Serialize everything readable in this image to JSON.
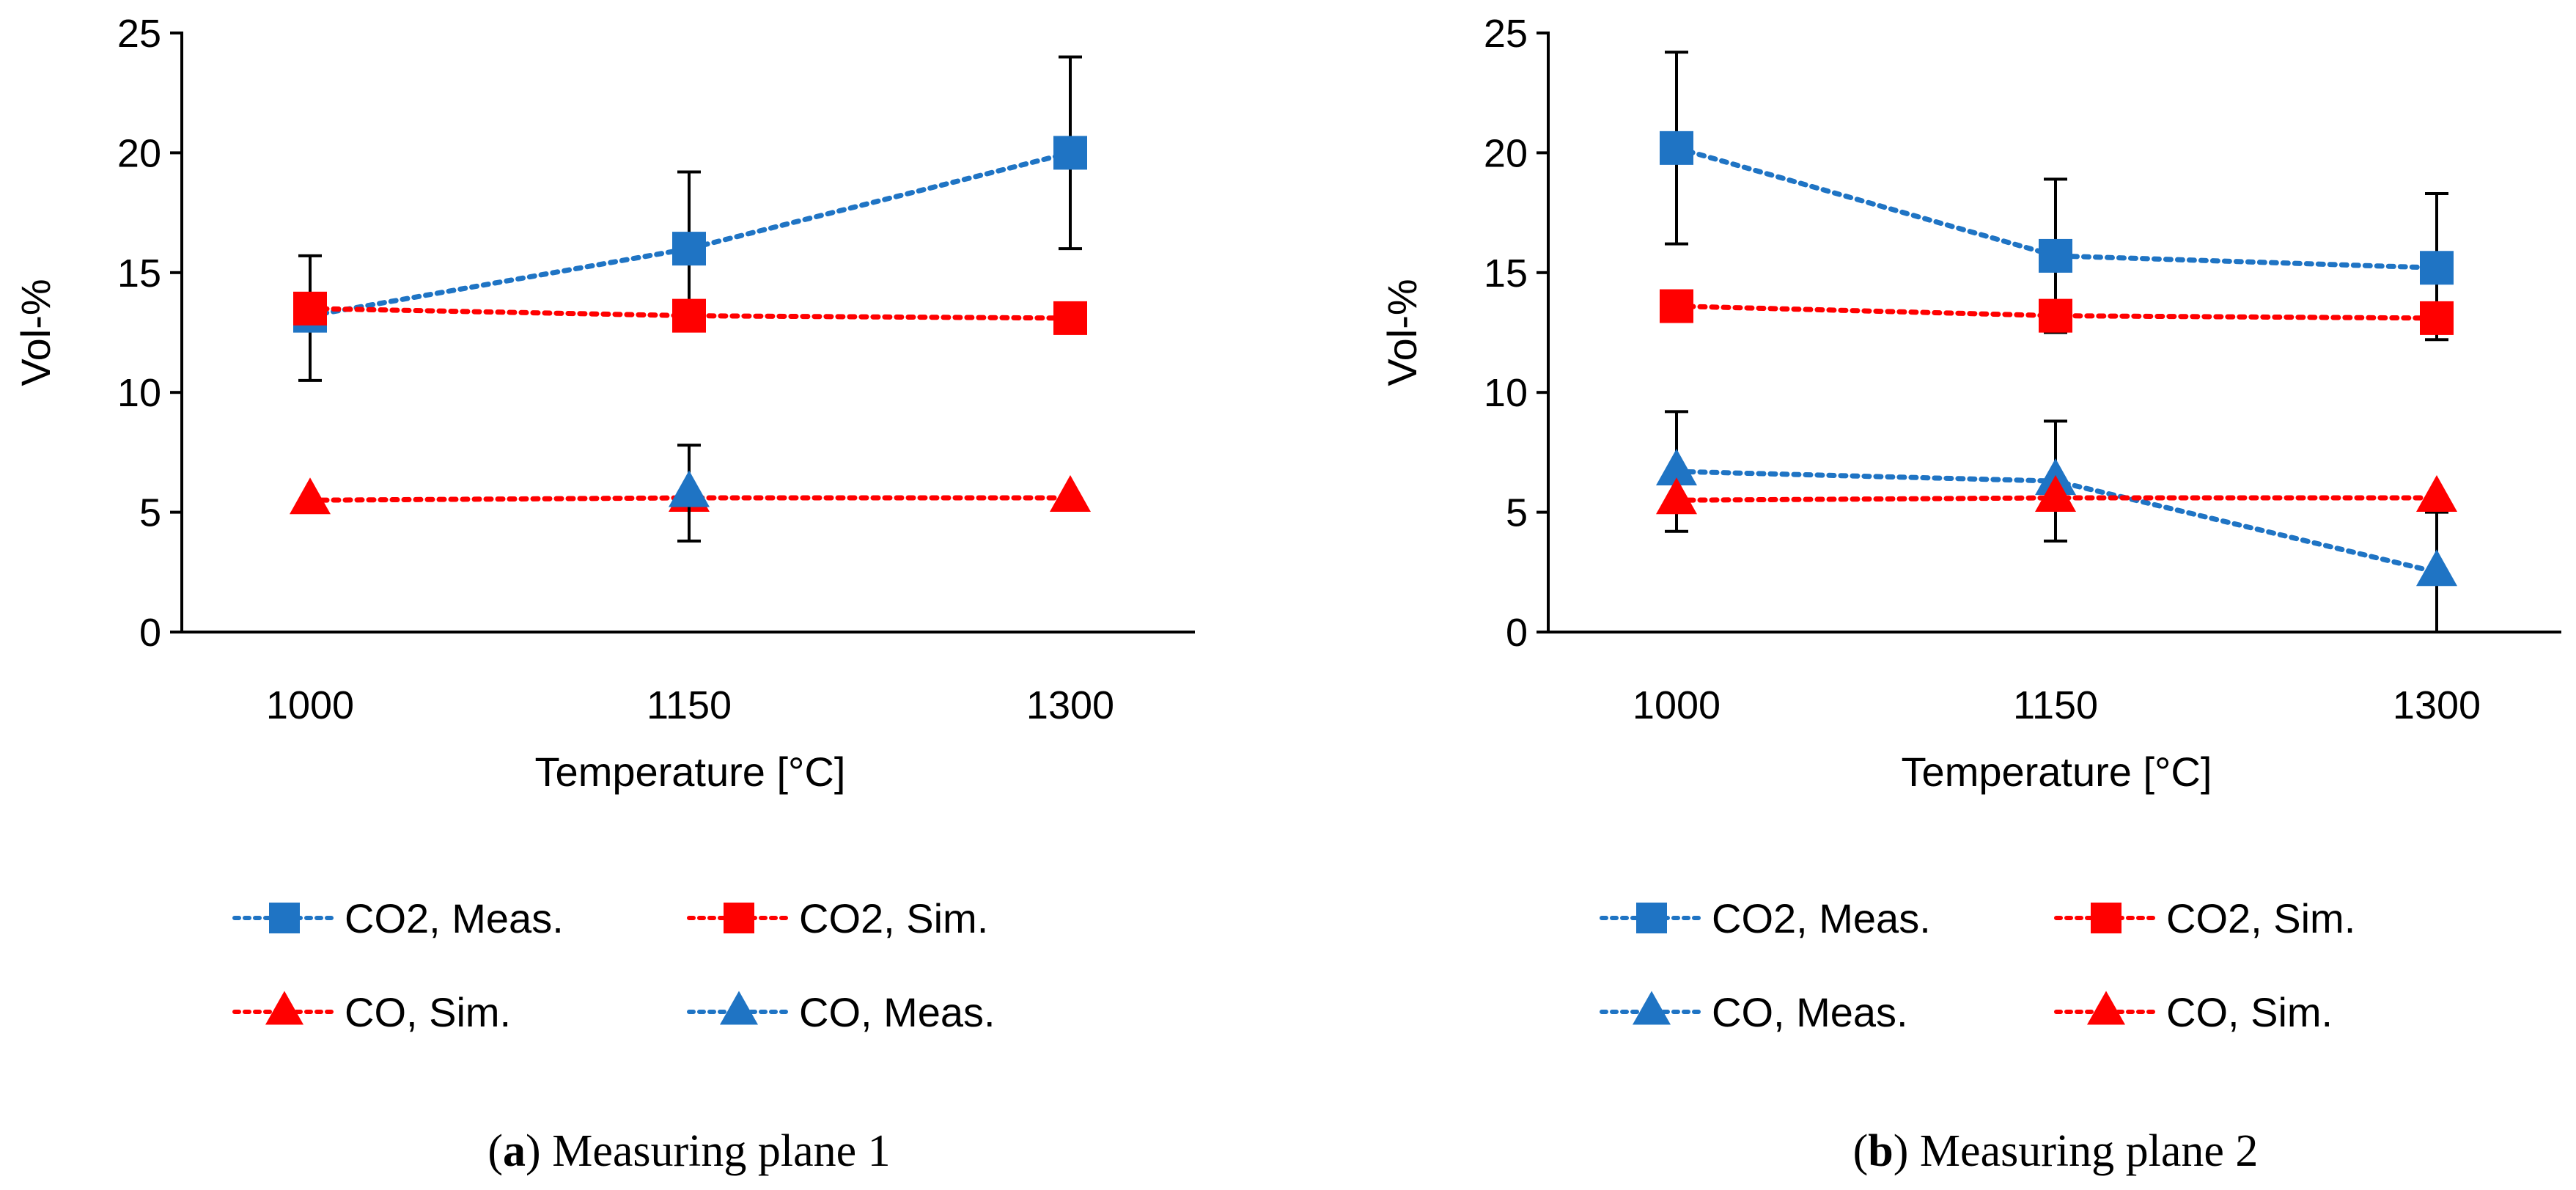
{
  "colors": {
    "meas": "#1f74c4",
    "sim": "#ff0000",
    "axis": "#000000"
  },
  "chart_data": [
    {
      "type": "line",
      "caption_letter": "a",
      "caption_text": "Measuring plane 1",
      "caption_open": "(",
      "caption_close": ")",
      "xlabel": "Temperature [°C]",
      "ylabel": "Vol-%",
      "ylim": [
        0,
        25
      ],
      "yticks": [
        "0",
        "5",
        "10",
        "15",
        "20",
        "25"
      ],
      "categories": [
        "1000",
        "1150",
        "1300"
      ],
      "series": [
        {
          "name": "CO2, Meas.",
          "marker": "square",
          "color_key": "meas",
          "values": [
            13.2,
            16.0,
            20.0
          ],
          "err_low": [
            2.7,
            2.5,
            4.0
          ],
          "err_high": [
            2.5,
            3.2,
            4.0
          ]
        },
        {
          "name": "CO2, Sim.",
          "marker": "square",
          "color_key": "sim",
          "values": [
            13.5,
            13.2,
            13.1
          ],
          "err_low": [
            0,
            0,
            0
          ],
          "err_high": [
            0,
            0,
            0
          ]
        },
        {
          "name": "CO, Sim.",
          "marker": "triangle",
          "color_key": "sim",
          "values": [
            5.5,
            5.6,
            5.6
          ],
          "err_low": [
            0,
            0,
            0
          ],
          "err_high": [
            0,
            0,
            0
          ]
        },
        {
          "name": "CO, Meas.",
          "marker": "triangle",
          "color_key": "meas",
          "values": [
            null,
            5.8,
            null
          ],
          "err_low": [
            0,
            2.0,
            0
          ],
          "err_high": [
            0,
            2.0,
            0
          ]
        }
      ]
    },
    {
      "type": "line",
      "caption_letter": "b",
      "caption_text": "Measuring plane 2",
      "caption_open": "(",
      "caption_close": ")",
      "xlabel": "Temperature [°C]",
      "ylabel": "Vol-%",
      "ylim": [
        0,
        25
      ],
      "yticks": [
        "0",
        "5",
        "10",
        "15",
        "20",
        "25"
      ],
      "categories": [
        "1000",
        "1150",
        "1300"
      ],
      "series": [
        {
          "name": "CO2, Meas.",
          "marker": "square",
          "color_key": "meas",
          "values": [
            20.2,
            15.7,
            15.2
          ],
          "err_low": [
            4.0,
            3.2,
            3.0
          ],
          "err_high": [
            4.0,
            3.2,
            3.1
          ]
        },
        {
          "name": "CO2, Sim.",
          "marker": "square",
          "color_key": "sim",
          "values": [
            13.6,
            13.2,
            13.1
          ],
          "err_low": [
            0,
            0,
            0
          ],
          "err_high": [
            0,
            0,
            0
          ]
        },
        {
          "name": "CO, Meas.",
          "marker": "triangle",
          "color_key": "meas",
          "values": [
            6.7,
            6.3,
            2.5
          ],
          "err_low": [
            2.5,
            2.5,
            2.5
          ],
          "err_high": [
            2.5,
            2.5,
            2.5
          ]
        },
        {
          "name": "CO, Sim.",
          "marker": "triangle",
          "color_key": "sim",
          "values": [
            5.5,
            5.6,
            5.6
          ],
          "err_low": [
            0,
            0,
            0
          ],
          "err_high": [
            0,
            0,
            0
          ]
        }
      ]
    }
  ]
}
